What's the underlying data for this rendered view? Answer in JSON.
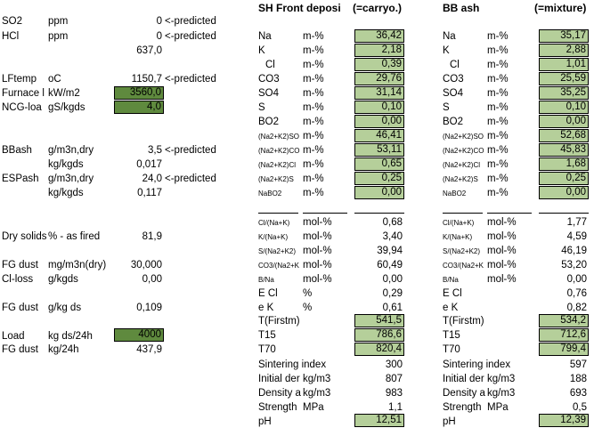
{
  "left": {
    "so2": {
      "label": "SO2",
      "unit": "ppm",
      "value": "0",
      "note": "<-predicted"
    },
    "hcl": {
      "label": "HCl",
      "unit": "ppm",
      "value": "0",
      "note": "<-predicted"
    },
    "hcl_extra": "637,0",
    "lftemp": {
      "label": "LFtemp",
      "unit": "oC",
      "value": "1150,7",
      "note": "<-predicted"
    },
    "furnace": {
      "label": "Furnace l",
      "unit": "kW/m2",
      "value": "3560,0"
    },
    "ncg": {
      "label": "NCG-loa",
      "unit": "gS/kgds",
      "value": "4,0"
    },
    "bbash": {
      "label": "BBash",
      "unit": "g/m3n,dry",
      "value": "3,5",
      "note": "<-predicted"
    },
    "bbash2": {
      "unit": "kg/kgds",
      "value": "0,017"
    },
    "espash": {
      "label": "ESPash",
      "unit": "g/m3n,dry",
      "value": "24,0",
      "note": "<-predicted"
    },
    "espash2": {
      "unit": "kg/kgds",
      "value": "0,117"
    },
    "drysolids": {
      "label": "Dry solids",
      "unit": "% - as fired",
      "value": "81,9"
    },
    "fgdust1": {
      "label": "FG dust",
      "unit": "mg/m3n(dry)",
      "value": "30,000"
    },
    "clloss": {
      "label": "Cl-loss",
      "unit": "g/kgds",
      "value": "0,00"
    },
    "fgdust2": {
      "label": "FG dust",
      "unit": "g/kg ds",
      "value": "0,109"
    },
    "load": {
      "label": "Load",
      "unit": "kg ds/24h",
      "value": "4000"
    },
    "fgdust3": {
      "label": "FG dust",
      "unit": "kg/24h",
      "value": "437,9"
    }
  },
  "sh": {
    "title": "SH Front deposi",
    "subtitle": "(=carryo.)",
    "rows": [
      {
        "label": "Na",
        "unit": "m-%",
        "value": "36,42"
      },
      {
        "label": "K",
        "unit": "m-%",
        "value": "2,18"
      },
      {
        "label": "Cl",
        "unit": "m-%",
        "value": "0,39"
      },
      {
        "label": "CO3",
        "unit": "m-%",
        "value": "29,76"
      },
      {
        "label": "SO4",
        "unit": "m-%",
        "value": "31,14"
      },
      {
        "label": "S",
        "unit": "m-%",
        "value": "0,10"
      },
      {
        "label": "BO2",
        "unit": "m-%",
        "value": "0,00"
      },
      {
        "label": "(Na2+K2)SO",
        "unit": "m-%",
        "value": "46,41"
      },
      {
        "label": "(Na2+K2)CO",
        "unit": "m-%",
        "value": "53,11"
      },
      {
        "label": "(Na2+K2)Cl",
        "unit": "m-%",
        "value": "0,65"
      },
      {
        "label": "(Na2+K2)S",
        "unit": "m-%",
        "value": "0,25"
      },
      {
        "label": "NaBO2",
        "unit": "m-%",
        "value": "0,00"
      }
    ],
    "mol": [
      {
        "label": "Cl/(Na+K)",
        "unit": "mol-%",
        "value": "0,68"
      },
      {
        "label": "K/(Na+K)",
        "unit": "mol-%",
        "value": "3,40"
      },
      {
        "label": "S/(Na2+K2)",
        "unit": "mol-%",
        "value": "39,94"
      },
      {
        "label": "CO3/(Na2+K",
        "unit": "mol-%",
        "value": "60,49"
      },
      {
        "label": "B/Na",
        "unit": "mol-%",
        "value": "0,00"
      },
      {
        "label": "E Cl",
        "unit": "%",
        "value": "0,29"
      },
      {
        "label": "e K",
        "unit": "%",
        "value": "0,61"
      }
    ],
    "temps": [
      {
        "label": "T(Firstm)",
        "value": "541,5"
      },
      {
        "label": "T15",
        "value": "786,6"
      },
      {
        "label": "T70",
        "value": "820,4"
      }
    ],
    "props": [
      {
        "label": "Sintering index",
        "unit": "",
        "value": "300"
      },
      {
        "label": "Initial der",
        "unit": "kg/m3",
        "value": "807"
      },
      {
        "label": "Density a",
        "unit": "kg/m3",
        "value": "983"
      },
      {
        "label": "Strength",
        "unit": "MPa",
        "value": "1,1"
      }
    ],
    "ph": {
      "label": "pH",
      "value": "12,51"
    }
  },
  "bb": {
    "title": "BB ash",
    "subtitle": "(=mixture)",
    "rows": [
      {
        "label": "Na",
        "unit": "m-%",
        "value": "35,17"
      },
      {
        "label": "K",
        "unit": "m-%",
        "value": "2,88"
      },
      {
        "label": "Cl",
        "unit": "m-%",
        "value": "1,01"
      },
      {
        "label": "CO3",
        "unit": "m-%",
        "value": "25,59"
      },
      {
        "label": "SO4",
        "unit": "m-%",
        "value": "35,25"
      },
      {
        "label": "S",
        "unit": "m-%",
        "value": "0,10"
      },
      {
        "label": "BO2",
        "unit": "m-%",
        "value": "0,00"
      },
      {
        "label": "(Na2+K2)SO",
        "unit": "m-%",
        "value": "52,68"
      },
      {
        "label": "(Na2+K2)CO",
        "unit": "m-%",
        "value": "45,83"
      },
      {
        "label": "(Na2+K2)Cl",
        "unit": "m-%",
        "value": "1,68"
      },
      {
        "label": "(Na2+K2)S",
        "unit": "m-%",
        "value": "0,25"
      },
      {
        "label": "NaBO2",
        "unit": "m-%",
        "value": "0,00"
      }
    ],
    "mol": [
      {
        "label": "Cl/(Na+K)",
        "unit": "mol-%",
        "value": "1,77"
      },
      {
        "label": "K/(Na+K)",
        "unit": "mol-%",
        "value": "4,59"
      },
      {
        "label": "S/(Na2+K2)",
        "unit": "mol-%",
        "value": "46,19"
      },
      {
        "label": "CO3/(Na2+K",
        "unit": "mol-%",
        "value": "53,20"
      },
      {
        "label": "B/Na",
        "unit": "mol-%",
        "value": "0,00"
      },
      {
        "label": "E Cl",
        "unit": "",
        "value": "0,76"
      },
      {
        "label": "e K",
        "unit": "",
        "value": "0,82"
      }
    ],
    "temps": [
      {
        "label": "T(Firstm)",
        "value": "534,2"
      },
      {
        "label": "T15",
        "value": "712,6"
      },
      {
        "label": "T70",
        "value": "799,4"
      }
    ],
    "props": [
      {
        "label": "Sintering index",
        "unit": "",
        "value": "597"
      },
      {
        "label": "Initial der",
        "unit": "kg/m3",
        "value": "188"
      },
      {
        "label": "Density a",
        "unit": "kg/m3",
        "value": "693"
      },
      {
        "label": "Strength",
        "unit": "MPa",
        "value": "0,5"
      }
    ],
    "ph": {
      "label": "pH",
      "value": "12,39"
    }
  },
  "colors": {
    "input_dark": "#5f8a3e",
    "input_light": "#b5cf9a"
  }
}
